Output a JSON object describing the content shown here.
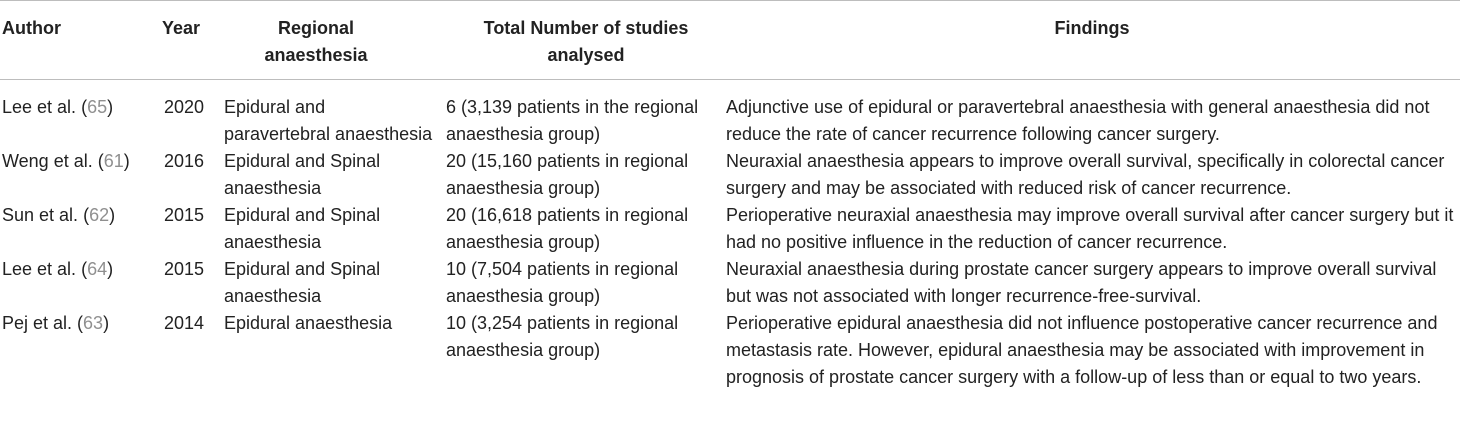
{
  "headers": {
    "author": "Author",
    "year": "Year",
    "regional": "Regional anaesthesia",
    "total": "Total Number of studies analysed",
    "findings": "Findings"
  },
  "rows": [
    {
      "author": "Lee et al.",
      "ref": "65",
      "year": "2020",
      "regional": "Epidural and paravertebral anaesthesia",
      "total": "6 (3,139 patients in the regional anaesthesia group)",
      "findings": "Adjunctive use of epidural or paravertebral anaesthesia with general anaesthesia did not reduce the rate of cancer recurrence following cancer surgery."
    },
    {
      "author": "Weng et al.",
      "ref": "61",
      "year": "2016",
      "regional": "Epidural and Spinal anaesthesia",
      "total": "20 (15,160 patients in regional anaesthesia group)",
      "findings": "Neuraxial anaesthesia appears to improve overall survival, specifically in colorectal cancer surgery and may be associated with reduced risk of cancer recurrence."
    },
    {
      "author": "Sun et al.",
      "ref": "62",
      "year": "2015",
      "regional": "Epidural and Spinal anaesthesia",
      "total": "20 (16,618 patients in regional anaesthesia group)",
      "findings": "Perioperative neuraxial anaesthesia may improve overall survival after cancer surgery but it had no positive influence in the reduction of cancer recurrence."
    },
    {
      "author": "Lee et al.",
      "ref": "64",
      "year": "2015",
      "regional": "Epidural and Spinal anaesthesia",
      "total": "10 (7,504 patients in regional anaesthesia group)",
      "findings": "Neuraxial anaesthesia during prostate cancer surgery appears to improve overall survival but was not associated with longer recurrence-free-survival."
    },
    {
      "author": "Pej et al.",
      "ref": "63",
      "year": "2014",
      "regional": "Epidural anaesthesia",
      "total": "10 (3,254 patients in regional anaesthesia group)",
      "findings": "Perioperative epidural anaesthesia did not influence postoperative cancer recurrence and metastasis rate. However, epidural anaesthesia may be associated with improvement in prognosis of prostate cancer surgery with a follow-up of less than or equal to two years."
    }
  ]
}
